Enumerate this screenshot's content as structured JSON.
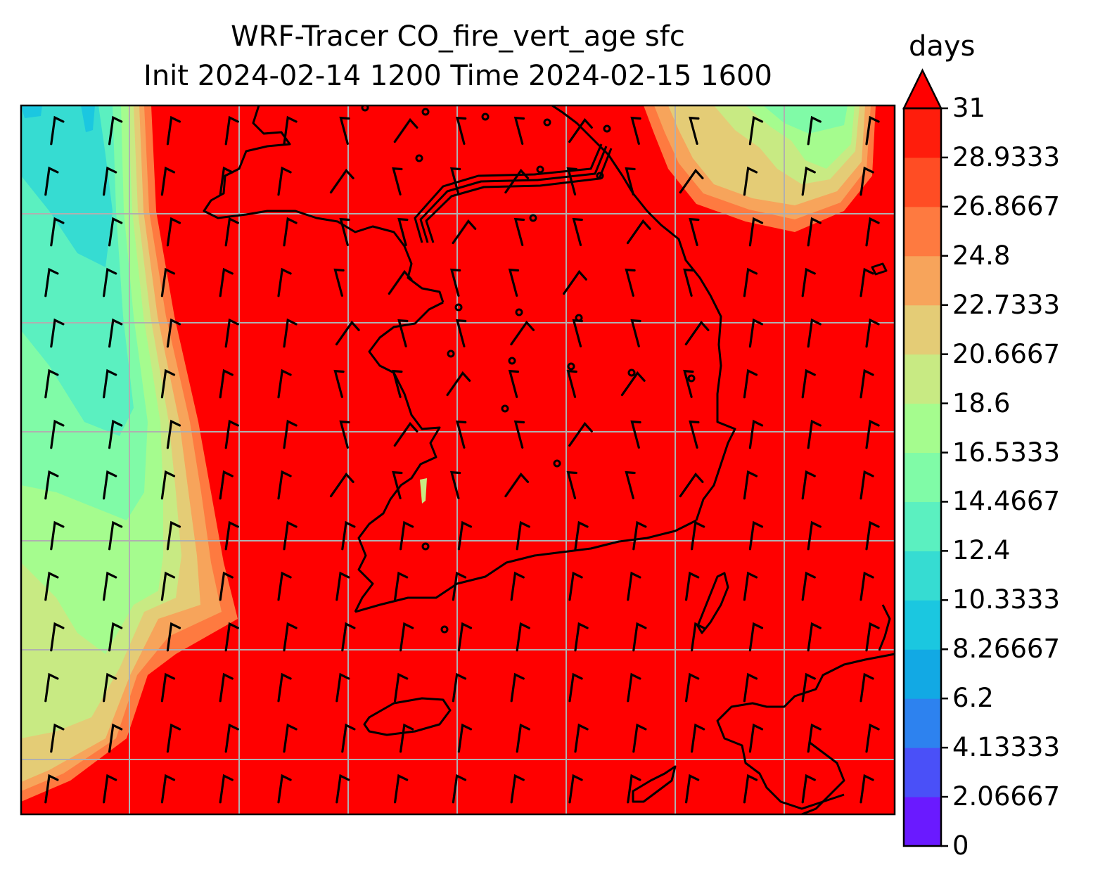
{
  "title": {
    "line1": "WRF-Tracer CO_fire_vert_age sfc",
    "line2": "Init 2024-02-14 1200 Time 2024-02-15 1600"
  },
  "colorbar": {
    "units": "days",
    "min": 0,
    "max": 31,
    "extend": "max",
    "ticks": [
      "0",
      "2.06667",
      "4.13333",
      "6.2",
      "8.26667",
      "10.3333",
      "12.4",
      "14.4667",
      "16.5333",
      "18.6",
      "20.6667",
      "22.7333",
      "24.8",
      "26.8667",
      "28.9333",
      "31"
    ],
    "colors": [
      "#6a1aff",
      "#4a50f8",
      "#2d82ef",
      "#12a9e4",
      "#1bc7e0",
      "#36dcd2",
      "#5bf0c0",
      "#80fba7",
      "#a5fc8e",
      "#c8ea83",
      "#e4cc76",
      "#f7a45b",
      "#fe7a40",
      "#ff4d24",
      "#ff1d0c"
    ],
    "overflow_color": "#ff0000"
  },
  "map": {
    "gridlines": true,
    "fill_color_dominant": "#ff0000",
    "features": [
      "coastlines",
      "country borders",
      "wind barbs"
    ]
  }
}
